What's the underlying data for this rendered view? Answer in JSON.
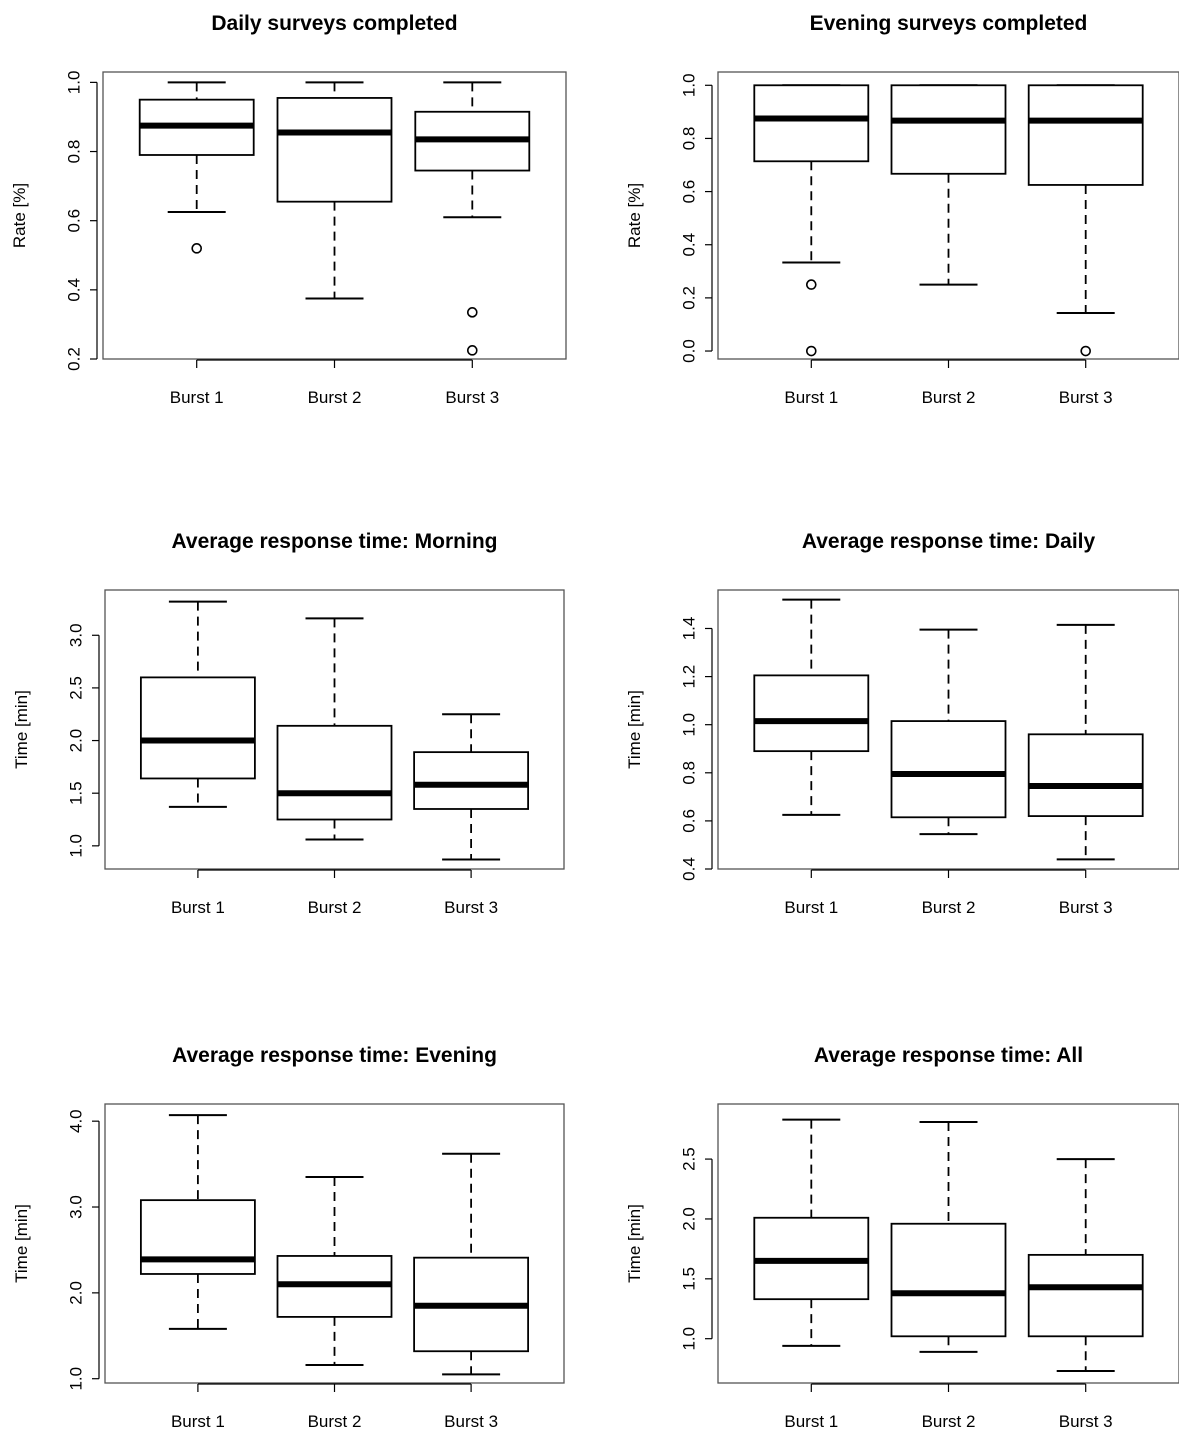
{
  "chart_data": [
    {
      "type": "boxplot",
      "title": "Daily surveys completed",
      "xlabel": "",
      "ylabel": "Rate [%]",
      "categories": [
        "Burst 1",
        "Burst 2",
        "Burst 3"
      ],
      "ylim": [
        0.2,
        1.03
      ],
      "yticks": [
        "0.2",
        "0.4",
        "0.6",
        "0.8",
        "1.0"
      ],
      "boxes": [
        {
          "whisker_low": 0.625,
          "q1": 0.79,
          "median": 0.875,
          "q3": 0.95,
          "whisker_high": 1.0,
          "outliers": [
            0.52
          ]
        },
        {
          "whisker_low": 0.375,
          "q1": 0.655,
          "median": 0.855,
          "q3": 0.955,
          "whisker_high": 1.0,
          "outliers": []
        },
        {
          "whisker_low": 0.61,
          "q1": 0.745,
          "median": 0.835,
          "q3": 0.915,
          "whisker_high": 1.0,
          "outliers": [
            0.335,
            0.225
          ]
        }
      ]
    },
    {
      "type": "boxplot",
      "title": "Evening surveys completed",
      "xlabel": "",
      "ylabel": "Rate [%]",
      "categories": [
        "Burst 1",
        "Burst 2",
        "Burst 3"
      ],
      "ylim": [
        -0.03,
        1.05
      ],
      "yticks": [
        "0.0",
        "0.2",
        "0.4",
        "0.6",
        "0.8",
        "1.0"
      ],
      "boxes": [
        {
          "whisker_low": 0.333,
          "q1": 0.714,
          "median": 0.875,
          "q3": 1.0,
          "whisker_high": 1.0,
          "outliers": [
            0.25,
            0.0
          ]
        },
        {
          "whisker_low": 0.25,
          "q1": 0.667,
          "median": 0.867,
          "q3": 1.0,
          "whisker_high": 1.0,
          "outliers": []
        },
        {
          "whisker_low": 0.143,
          "q1": 0.625,
          "median": 0.867,
          "q3": 1.0,
          "whisker_high": 1.0,
          "outliers": [
            0.0
          ]
        }
      ]
    },
    {
      "type": "boxplot",
      "title": "Average response time: Morning",
      "xlabel": "",
      "ylabel": "Time [min]",
      "categories": [
        "Burst 1",
        "Burst 2",
        "Burst 3"
      ],
      "ylim": [
        0.78,
        3.43
      ],
      "yticks": [
        "1.0",
        "1.5",
        "2.0",
        "2.5",
        "3.0"
      ],
      "boxes": [
        {
          "whisker_low": 1.37,
          "q1": 1.64,
          "median": 2.0,
          "q3": 2.6,
          "whisker_high": 3.32,
          "outliers": []
        },
        {
          "whisker_low": 1.06,
          "q1": 1.25,
          "median": 1.5,
          "q3": 2.14,
          "whisker_high": 3.16,
          "outliers": []
        },
        {
          "whisker_low": 0.87,
          "q1": 1.35,
          "median": 1.58,
          "q3": 1.89,
          "whisker_high": 2.25,
          "outliers": []
        }
      ]
    },
    {
      "type": "boxplot",
      "title": "Average response time: Daily",
      "xlabel": "",
      "ylabel": "Time [min]",
      "categories": [
        "Burst 1",
        "Burst 2",
        "Burst 3"
      ],
      "ylim": [
        0.4,
        1.56
      ],
      "yticks": [
        "0.4",
        "0.6",
        "0.8",
        "1.0",
        "1.2",
        "1.4"
      ],
      "boxes": [
        {
          "whisker_low": 0.625,
          "q1": 0.89,
          "median": 1.015,
          "q3": 1.205,
          "whisker_high": 1.52,
          "outliers": []
        },
        {
          "whisker_low": 0.545,
          "q1": 0.615,
          "median": 0.795,
          "q3": 1.015,
          "whisker_high": 1.395,
          "outliers": []
        },
        {
          "whisker_low": 0.44,
          "q1": 0.62,
          "median": 0.745,
          "q3": 0.96,
          "whisker_high": 1.415,
          "outliers": []
        }
      ]
    },
    {
      "type": "boxplot",
      "title": "Average response time: Evening",
      "xlabel": "",
      "ylabel": "Time [min]",
      "categories": [
        "Burst 1",
        "Burst 2",
        "Burst 3"
      ],
      "ylim": [
        0.95,
        4.2
      ],
      "yticks": [
        "1.0",
        "2.0",
        "3.0",
        "4.0"
      ],
      "boxes": [
        {
          "whisker_low": 1.58,
          "q1": 2.22,
          "median": 2.39,
          "q3": 3.08,
          "whisker_high": 4.07,
          "outliers": []
        },
        {
          "whisker_low": 1.16,
          "q1": 1.72,
          "median": 2.1,
          "q3": 2.43,
          "whisker_high": 3.35,
          "outliers": []
        },
        {
          "whisker_low": 1.05,
          "q1": 1.32,
          "median": 1.85,
          "q3": 2.41,
          "whisker_high": 3.62,
          "outliers": []
        }
      ]
    },
    {
      "type": "boxplot",
      "title": "Average response time: All",
      "xlabel": "",
      "ylabel": "Time [min]",
      "categories": [
        "Burst 1",
        "Burst 2",
        "Burst 3"
      ],
      "ylim": [
        0.63,
        2.96
      ],
      "yticks": [
        "1.0",
        "1.5",
        "2.0",
        "2.5"
      ],
      "boxes": [
        {
          "whisker_low": 0.94,
          "q1": 1.33,
          "median": 1.65,
          "q3": 2.01,
          "whisker_high": 2.83,
          "outliers": []
        },
        {
          "whisker_low": 0.89,
          "q1": 1.02,
          "median": 1.38,
          "q3": 1.96,
          "whisker_high": 2.81,
          "outliers": []
        },
        {
          "whisker_low": 0.73,
          "q1": 1.02,
          "median": 1.43,
          "q3": 1.7,
          "whisker_high": 2.5,
          "outliers": []
        }
      ]
    }
  ]
}
